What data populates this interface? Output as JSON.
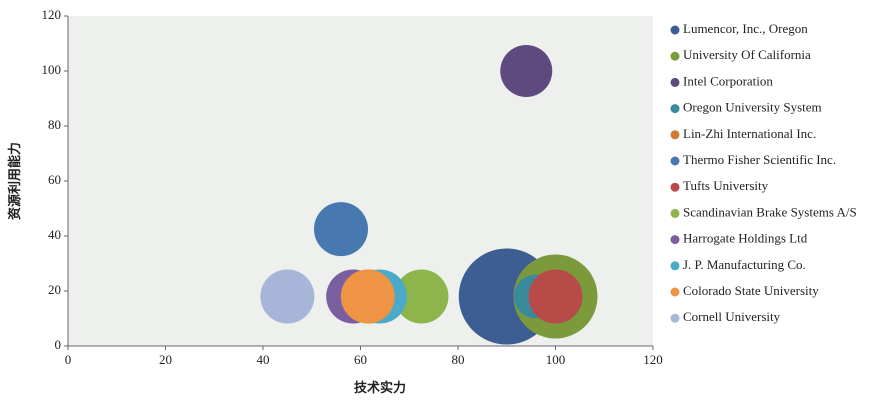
{
  "chart_data": {
    "type": "bubble",
    "x_label": "技术实力",
    "y_label": "资源利用能力",
    "xlim": [
      0,
      120
    ],
    "xticks": [
      0,
      20,
      40,
      60,
      80,
      100,
      120
    ],
    "ylim": [
      0,
      120
    ],
    "yticks": [
      0,
      20,
      40,
      60,
      80,
      100,
      120
    ],
    "series": [
      {
        "name": "Lumencor, Inc., Oregon",
        "color": "#3c5e93",
        "x": [
          90
        ],
        "y": [
          18
        ],
        "size": [
          48
        ]
      },
      {
        "name": "University Of California",
        "color": "#7a9a3c",
        "x": [
          100
        ],
        "y": [
          18
        ],
        "size": [
          42
        ]
      },
      {
        "name": "Intel Corporation",
        "color": "#5f4a80",
        "x": [
          94
        ],
        "y": [
          100
        ],
        "size": [
          26
        ]
      },
      {
        "name": "Oregon University System",
        "color": "#3a8a9e",
        "x": [
          96
        ],
        "y": [
          18
        ],
        "size": [
          22
        ]
      },
      {
        "name": "Lin-Zhi International Inc.",
        "color": "#d07b35",
        "x": [
          62
        ],
        "y": [
          18
        ],
        "size": [
          27
        ]
      },
      {
        "name": "Thermo Fisher Scientific Inc.",
        "color": "#4878b0",
        "x": [
          56
        ],
        "y": [
          42.5
        ],
        "size": [
          27
        ]
      },
      {
        "name": "Tufts University",
        "color": "#b84a47",
        "x": [
          100
        ],
        "y": [
          18
        ],
        "size": [
          27
        ]
      },
      {
        "name": "Scandinavian Brake Systems A/S",
        "color": "#8db54b",
        "x": [
          72.5
        ],
        "y": [
          18
        ],
        "size": [
          27
        ]
      },
      {
        "name": "Harrogate Holdings Ltd",
        "color": "#7a5fa0",
        "x": [
          58.5
        ],
        "y": [
          18
        ],
        "size": [
          27
        ]
      },
      {
        "name": "J. P. Manufacturing Co.",
        "color": "#4aaac8",
        "x": [
          64
        ],
        "y": [
          18
        ],
        "size": [
          27
        ]
      },
      {
        "name": "Colorado State University",
        "color": "#ef9445",
        "x": [
          61.5
        ],
        "y": [
          18
        ],
        "size": [
          27
        ]
      },
      {
        "name": "Cornell University",
        "color": "#a7b5d8",
        "x": [
          45
        ],
        "y": [
          18
        ],
        "size": [
          27
        ]
      }
    ]
  }
}
